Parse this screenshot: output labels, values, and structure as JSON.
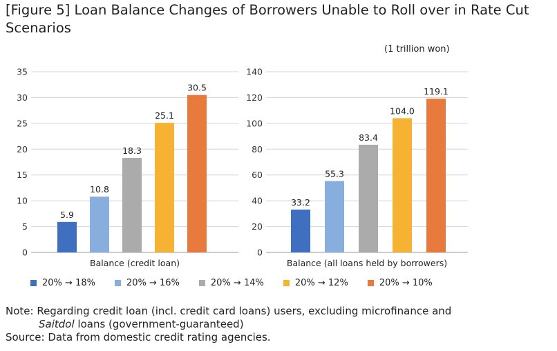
{
  "title": "[Figure 5] Loan Balance Changes of Borrowers Unable to Roll over in Rate Cut Scenarios",
  "unit": "(1 trillion won)",
  "legend": [
    {
      "label": "20% → 18%",
      "color": "#3f6fbf"
    },
    {
      "label": "20% → 16%",
      "color": "#87aedc"
    },
    {
      "label": "20% → 14%",
      "color": "#ababab"
    },
    {
      "label": "20% → 12%",
      "color": "#f5b233"
    },
    {
      "label": "20% → 10%",
      "color": "#e97a3e"
    }
  ],
  "chart_data": [
    {
      "type": "bar",
      "xlabel": "Balance (credit loan)",
      "ylim": [
        0,
        35
      ],
      "yticks": [
        0,
        5,
        10,
        15,
        20,
        25,
        30,
        35
      ],
      "grid": true,
      "series": [
        {
          "name": "20% → 18%",
          "values": [
            5.9
          ]
        },
        {
          "name": "20% → 16%",
          "values": [
            10.8
          ]
        },
        {
          "name": "20% → 14%",
          "values": [
            18.3
          ]
        },
        {
          "name": "20% → 12%",
          "values": [
            25.1
          ]
        },
        {
          "name": "20% → 10%",
          "values": [
            30.5
          ]
        }
      ]
    },
    {
      "type": "bar",
      "xlabel": "Balance (all loans held by borrowers)",
      "ylim": [
        0,
        140
      ],
      "yticks": [
        0,
        20,
        40,
        60,
        80,
        100,
        120,
        140
      ],
      "grid": true,
      "series": [
        {
          "name": "20% → 18%",
          "values": [
            33.2
          ]
        },
        {
          "name": "20% → 16%",
          "values": [
            55.3
          ]
        },
        {
          "name": "20% → 14%",
          "values": [
            83.4
          ]
        },
        {
          "name": "20% → 12%",
          "values": [
            104.0
          ]
        },
        {
          "name": "20% → 10%",
          "values": [
            119.1
          ]
        }
      ]
    }
  ],
  "notes": {
    "line1": "Note: Regarding credit loan (incl. credit card loans) users, excluding microfinance and",
    "line2_italic": "Saitdol",
    "line2_rest": " loans (government-guaranteed)",
    "source": "Source: Data from domestic credit rating agencies."
  }
}
